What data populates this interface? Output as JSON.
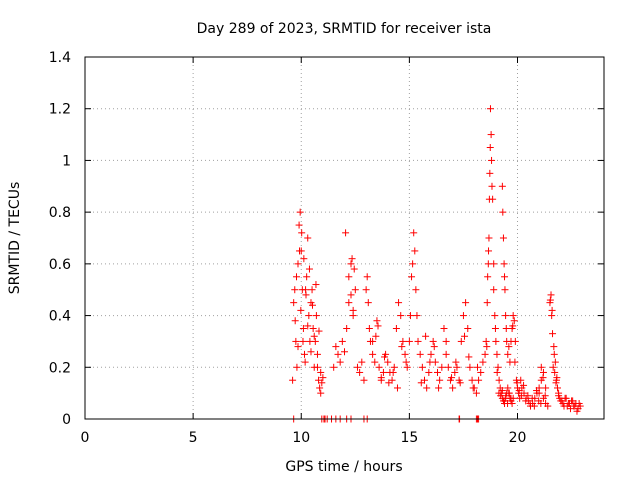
{
  "chart_data": {
    "type": "scatter",
    "title": "Day 289 of 2023, SRMTID for receiver ista",
    "xlabel": "GPS time / hours",
    "ylabel": "SRMTID / TECUs",
    "xlim": [
      0,
      24
    ],
    "ylim": [
      0,
      1.4
    ],
    "x_ticks": [
      0,
      5,
      10,
      15,
      20
    ],
    "x_tick_labels": [
      "0",
      "5",
      "10",
      "15",
      "20"
    ],
    "y_ticks": [
      0,
      0.2,
      0.4,
      0.6,
      0.8,
      1.0,
      1.2,
      1.4
    ],
    "y_tick_labels": [
      "0",
      "0.2",
      "0.4",
      "0.6",
      "0.8",
      "1",
      "1.2",
      "1.4"
    ],
    "grid": true,
    "marker": "+",
    "series": [
      {
        "name": "SRMTID",
        "color": "#ff0000",
        "x": [
          9.6,
          9.65,
          9.7,
          9.75,
          9.8,
          9.85,
          9.9,
          9.95,
          10.0,
          10.05,
          10.1,
          10.15,
          10.2,
          10.25,
          10.3,
          10.35,
          10.4,
          10.45,
          10.5,
          10.55,
          10.6,
          10.65,
          10.7,
          10.75,
          10.8,
          10.85,
          10.9,
          10.95,
          11.0,
          9.72,
          9.78,
          9.85,
          9.92,
          9.98,
          10.02,
          10.08,
          10.12,
          10.18,
          10.22,
          10.3,
          10.38,
          10.45,
          10.52,
          10.6,
          10.68,
          10.75,
          10.82,
          10.9,
          11.5,
          11.6,
          11.7,
          11.8,
          11.9,
          12.0,
          12.05,
          12.1,
          12.2,
          12.3,
          12.4,
          12.5,
          12.6,
          12.7,
          12.8,
          12.9,
          12.2,
          12.3,
          12.35,
          12.4,
          12.45,
          13.0,
          13.05,
          13.1,
          13.15,
          13.2,
          13.3,
          13.4,
          13.5,
          13.6,
          13.7,
          13.8,
          13.9,
          14.0,
          14.1,
          14.2,
          14.3,
          14.4,
          14.5,
          14.6,
          14.7,
          14.8,
          14.9,
          13.3,
          13.45,
          13.55,
          13.7,
          13.85,
          14.05,
          14.25,
          14.45,
          14.65,
          14.85,
          15.0,
          15.05,
          15.1,
          15.15,
          15.2,
          15.25,
          15.3,
          15.35,
          15.4,
          15.5,
          15.6,
          15.7,
          15.8,
          15.9,
          16.0,
          16.1,
          16.2,
          16.3,
          16.4,
          16.5,
          15.55,
          15.75,
          15.95,
          16.15,
          16.35,
          16.6,
          16.7,
          16.8,
          16.9,
          17.0,
          17.1,
          17.2,
          17.3,
          17.4,
          17.5,
          17.6,
          17.7,
          17.8,
          17.9,
          18.0,
          18.1,
          18.2,
          18.3,
          18.4,
          16.7,
          16.95,
          17.15,
          17.35,
          17.55,
          17.75,
          17.95,
          18.15,
          18.5,
          18.55,
          18.6,
          18.62,
          18.65,
          18.68,
          18.7,
          18.72,
          18.75,
          18.78,
          18.8,
          18.85,
          18.9,
          18.95,
          19.0,
          19.05,
          19.1,
          19.15,
          19.2,
          19.25,
          19.3,
          19.35,
          19.4,
          19.45,
          19.5,
          19.55,
          19.6,
          19.65,
          19.7,
          19.75,
          19.8,
          18.58,
          18.66,
          18.74,
          18.82,
          18.9,
          18.98,
          19.06,
          19.14,
          19.22,
          19.3,
          19.38,
          19.46,
          19.54,
          19.62,
          19.7,
          19.3,
          19.32,
          19.35,
          19.38,
          19.4,
          19.42,
          19.45,
          19.48,
          19.5,
          19.55,
          19.6,
          19.65,
          19.7,
          19.75,
          19.8,
          19.85,
          19.9,
          19.95,
          20.0,
          20.05,
          20.1,
          20.15,
          20.2,
          20.3,
          20.4,
          20.5,
          20.6,
          20.7,
          20.8,
          20.9,
          21.0,
          21.1,
          21.2,
          21.3,
          21.4,
          19.78,
          19.88,
          19.98,
          20.08,
          20.18,
          20.28,
          20.38,
          20.48,
          20.58,
          20.68,
          20.78,
          20.88,
          20.98,
          21.08,
          21.18,
          21.28,
          21.0,
          21.1,
          21.2,
          21.3,
          21.5,
          21.55,
          21.6,
          21.65,
          21.7,
          21.75,
          21.8,
          21.85,
          21.9,
          21.95,
          22.0,
          22.1,
          22.2,
          22.3,
          22.4,
          22.5,
          22.6,
          22.7,
          22.8,
          22.9,
          21.52,
          21.58,
          21.62,
          21.68,
          21.72,
          21.78,
          21.82,
          21.9,
          22.05,
          22.15,
          22.25,
          22.35,
          22.45,
          22.55,
          22.65,
          22.75,
          22.85,
          9.65,
          10.95,
          11.05,
          11.1,
          11.2,
          11.4,
          11.6,
          11.8,
          12.1,
          12.3,
          12.9,
          13.05,
          17.3,
          17.32,
          18.1,
          18.15,
          18.2
        ],
        "y": [
          0.15,
          0.45,
          0.5,
          0.3,
          0.2,
          0.6,
          0.75,
          0.8,
          0.65,
          0.5,
          0.35,
          0.25,
          0.5,
          0.55,
          0.7,
          0.4,
          0.3,
          0.45,
          0.5,
          0.35,
          0.2,
          0.3,
          0.4,
          0.25,
          0.15,
          0.12,
          0.1,
          0.14,
          0.16,
          0.38,
          0.55,
          0.28,
          0.65,
          0.42,
          0.72,
          0.3,
          0.62,
          0.22,
          0.48,
          0.36,
          0.58,
          0.26,
          0.44,
          0.32,
          0.52,
          0.2,
          0.34,
          0.18,
          0.2,
          0.28,
          0.25,
          0.22,
          0.3,
          0.26,
          0.72,
          0.35,
          0.45,
          0.6,
          0.4,
          0.5,
          0.2,
          0.18,
          0.22,
          0.15,
          0.55,
          0.48,
          0.62,
          0.42,
          0.58,
          0.5,
          0.55,
          0.45,
          0.35,
          0.3,
          0.25,
          0.22,
          0.38,
          0.2,
          0.15,
          0.18,
          0.25,
          0.22,
          0.18,
          0.15,
          0.2,
          0.35,
          0.45,
          0.4,
          0.3,
          0.25,
          0.2,
          0.3,
          0.32,
          0.36,
          0.16,
          0.24,
          0.14,
          0.18,
          0.12,
          0.28,
          0.22,
          0.3,
          0.4,
          0.55,
          0.6,
          0.72,
          0.65,
          0.5,
          0.4,
          0.3,
          0.25,
          0.2,
          0.15,
          0.12,
          0.18,
          0.25,
          0.3,
          0.22,
          0.18,
          0.15,
          0.2,
          0.14,
          0.32,
          0.22,
          0.28,
          0.12,
          0.35,
          0.3,
          0.2,
          0.15,
          0.12,
          0.18,
          0.2,
          0.15,
          0.3,
          0.4,
          0.45,
          0.35,
          0.2,
          0.15,
          0.12,
          0.1,
          0.15,
          0.18,
          0.22,
          0.25,
          0.16,
          0.22,
          0.14,
          0.32,
          0.24,
          0.12,
          0.2,
          0.25,
          0.3,
          0.45,
          0.55,
          0.6,
          0.7,
          0.85,
          0.95,
          1.2,
          1.1,
          1.0,
          0.85,
          0.6,
          0.4,
          0.3,
          0.25,
          0.2,
          0.15,
          0.12,
          0.1,
          0.08,
          0.07,
          0.06,
          0.08,
          0.1,
          0.12,
          0.1,
          0.08,
          0.07,
          0.06,
          0.08,
          0.28,
          0.65,
          1.05,
          0.9,
          0.5,
          0.35,
          0.18,
          0.1,
          0.09,
          0.11,
          0.07,
          0.09,
          0.06,
          0.1,
          0.08,
          0.9,
          0.8,
          0.7,
          0.6,
          0.55,
          0.5,
          0.4,
          0.35,
          0.3,
          0.25,
          0.28,
          0.22,
          0.3,
          0.35,
          0.4,
          0.38,
          0.3,
          0.15,
          0.12,
          0.1,
          0.08,
          0.15,
          0.12,
          0.1,
          0.08,
          0.07,
          0.05,
          0.06,
          0.08,
          0.1,
          0.12,
          0.2,
          0.08,
          0.06,
          0.05,
          0.36,
          0.22,
          0.14,
          0.11,
          0.09,
          0.13,
          0.07,
          0.09,
          0.06,
          0.08,
          0.05,
          0.11,
          0.07,
          0.06,
          0.16,
          0.09,
          0.1,
          0.15,
          0.18,
          0.12,
          0.45,
          0.48,
          0.42,
          0.2,
          0.25,
          0.22,
          0.15,
          0.12,
          0.1,
          0.08,
          0.07,
          0.06,
          0.08,
          0.05,
          0.06,
          0.07,
          0.05,
          0.06,
          0.04,
          0.05,
          0.46,
          0.4,
          0.33,
          0.28,
          0.18,
          0.14,
          0.16,
          0.09,
          0.07,
          0.05,
          0.08,
          0.06,
          0.04,
          0.07,
          0.05,
          0.03,
          0.06,
          0,
          0,
          0,
          0,
          0,
          0,
          0,
          0,
          0,
          0,
          0,
          0,
          0,
          0,
          0,
          0,
          0
        ]
      }
    ]
  }
}
